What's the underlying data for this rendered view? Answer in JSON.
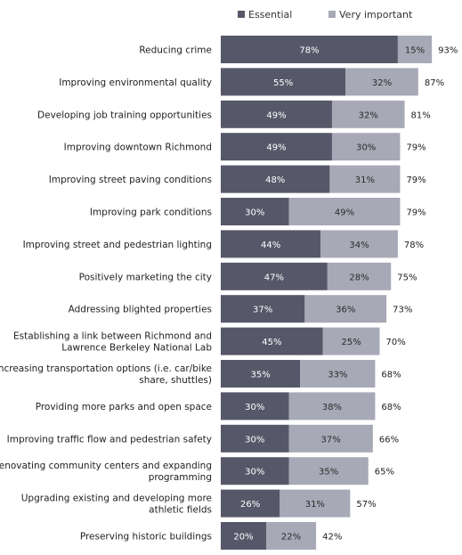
{
  "chart_data": {
    "type": "bar",
    "stacked": true,
    "orientation": "horizontal",
    "legend_position": "top-right",
    "grid": false,
    "xlim": [
      0,
      100
    ],
    "categories": [
      "Reducing crime",
      "Improving environmental quality",
      "Developing job training opportunities",
      "Improving downtown Richmond",
      "Improving street paving conditions",
      "Improving park conditions",
      "Improving street and pedestrian lighting",
      "Positively marketing the city",
      "Addressing blighted properties",
      "Establishing a link between Richmond and Lawrence Berkeley National Lab",
      "Increasing transportation options (i.e. car/bike share, shuttles)",
      "Providing more parks and open space",
      "Improving traffic flow and pedestrian safety",
      "Renovating community centers and expanding programming",
      "Upgrading existing and developing more athletic fields",
      "Preserving historic buildings"
    ],
    "category_lines": [
      [
        "Reducing crime"
      ],
      [
        "Improving environmental quality"
      ],
      [
        "Developing job training opportunities"
      ],
      [
        "Improving downtown Richmond"
      ],
      [
        "Improving street paving conditions"
      ],
      [
        "Improving park conditions"
      ],
      [
        "Improving street and pedestrian lighting"
      ],
      [
        "Positively marketing the city"
      ],
      [
        "Addressing blighted properties"
      ],
      [
        "Establishing a link between Richmond and",
        "Lawrence Berkeley National Lab"
      ],
      [
        "Increasing transportation options (i.e. car/bike",
        "share, shuttles)"
      ],
      [
        "Providing more parks and open space"
      ],
      [
        "Improving traffic flow and pedestrian safety"
      ],
      [
        "Renovating community centers and expanding",
        "programming"
      ],
      [
        "Upgrading existing and developing more",
        "athletic fields"
      ],
      [
        "Preserving historic buildings"
      ]
    ],
    "series": [
      {
        "name": "Essential",
        "color": "#565869",
        "values": [
          78,
          55,
          49,
          49,
          48,
          30,
          44,
          47,
          37,
          45,
          35,
          30,
          30,
          30,
          26,
          20
        ]
      },
      {
        "name": "Very important",
        "color": "#a8a9b7",
        "values": [
          15,
          32,
          32,
          30,
          31,
          49,
          34,
          28,
          36,
          25,
          33,
          38,
          37,
          35,
          31,
          22
        ]
      }
    ],
    "totals": [
      93,
      87,
      81,
      79,
      79,
      79,
      78,
      75,
      73,
      70,
      68,
      68,
      66,
      65,
      57,
      42
    ],
    "value_suffix": "%"
  }
}
